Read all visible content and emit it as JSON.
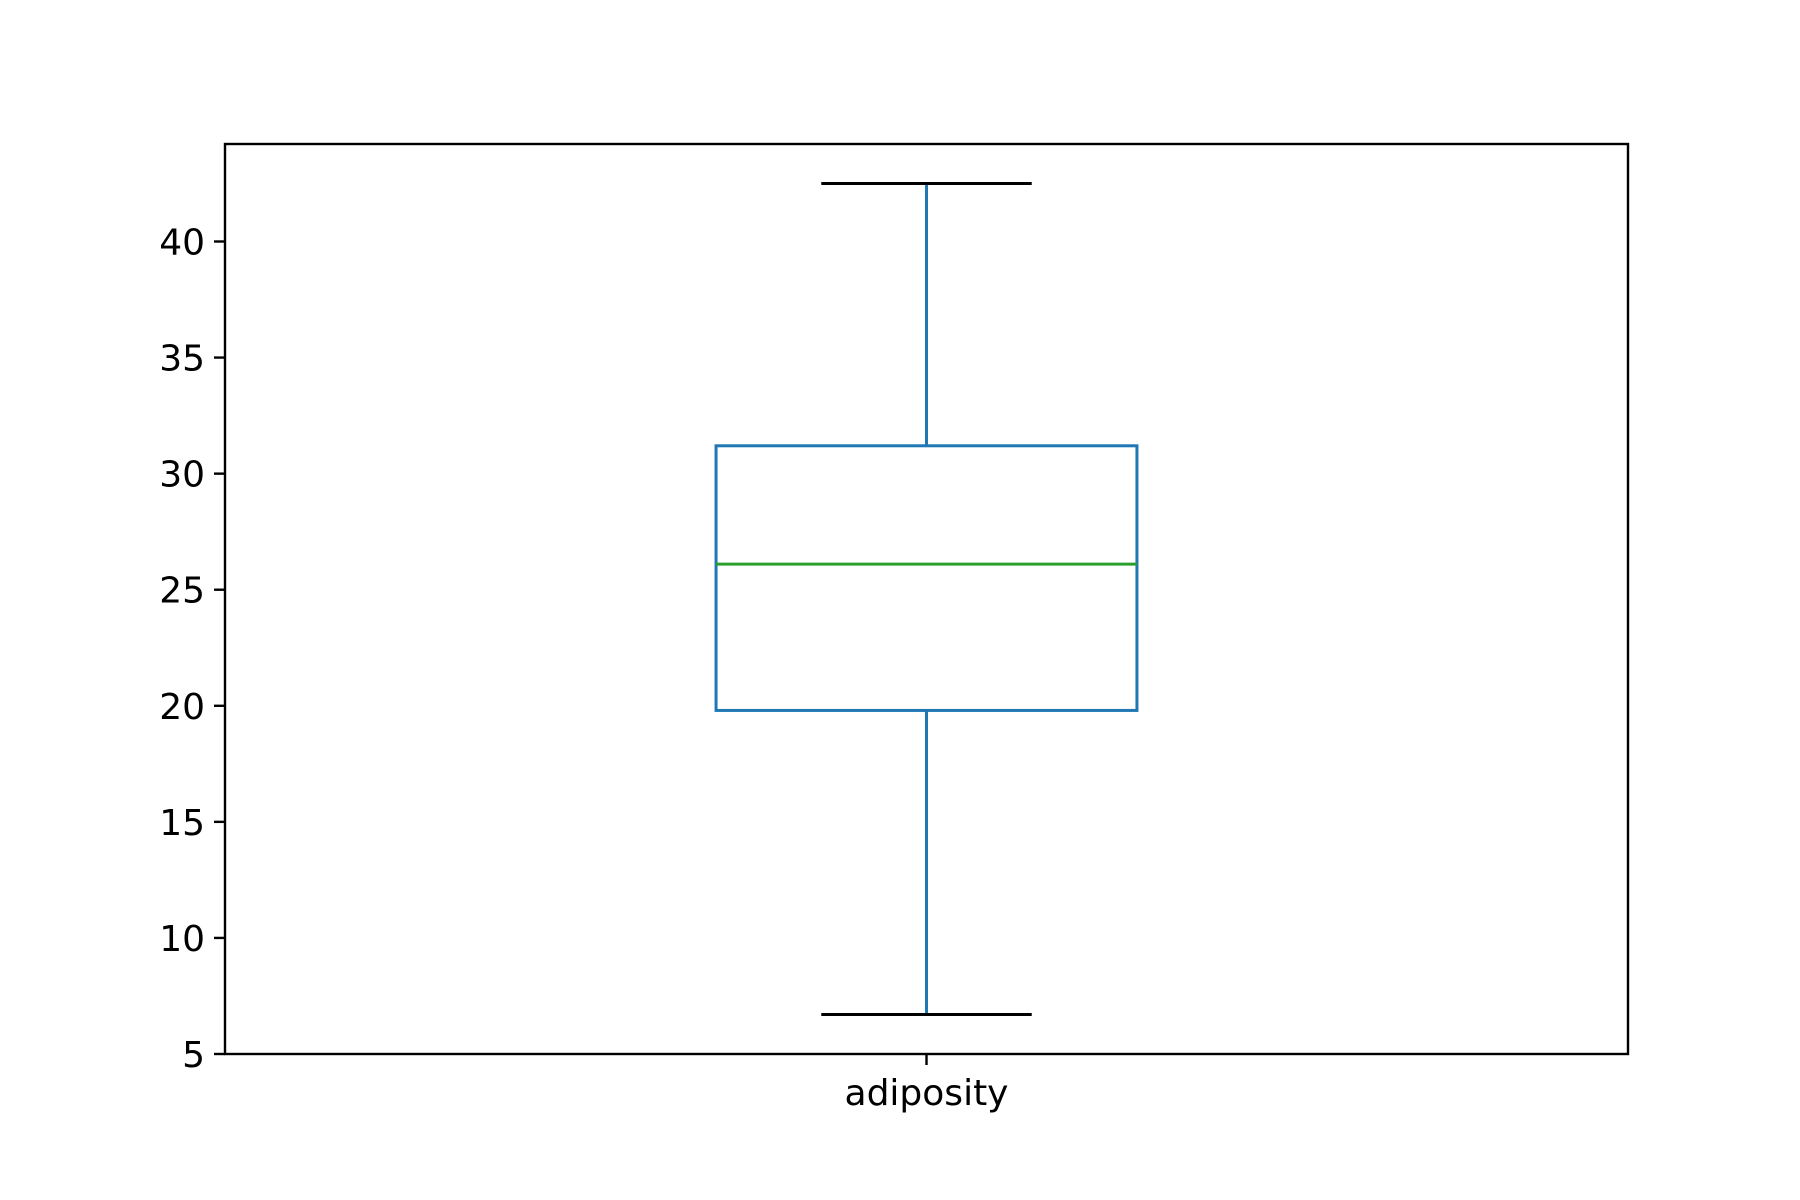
{
  "chart_data": {
    "type": "box",
    "title": "",
    "xlabel": "",
    "ylabel": "",
    "categories": [
      "adiposity"
    ],
    "series": [
      {
        "category": "adiposity",
        "whisker_low": 6.7,
        "q1": 19.8,
        "median": 26.1,
        "q3": 31.2,
        "whisker_high": 42.5
      }
    ],
    "ylim": [
      5,
      44.2
    ],
    "yticks": [
      5,
      10,
      15,
      20,
      25,
      30,
      35,
      40
    ],
    "grid": false,
    "legend": "none",
    "colors": {
      "box": "#1f77b4",
      "median": "#2ca02c",
      "caps": "#000000",
      "axes": "#000000"
    }
  }
}
